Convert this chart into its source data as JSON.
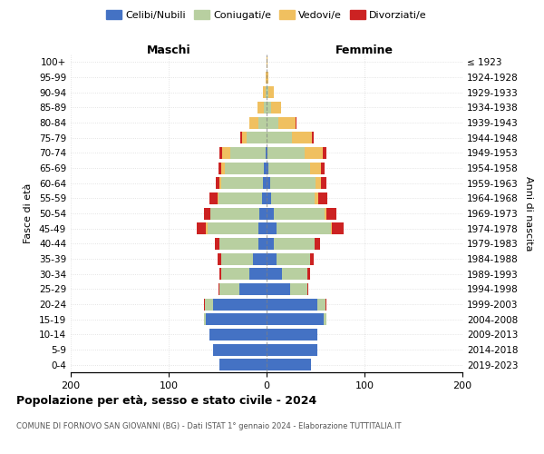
{
  "age_groups": [
    "0-4",
    "5-9",
    "10-14",
    "15-19",
    "20-24",
    "25-29",
    "30-34",
    "35-39",
    "40-44",
    "45-49",
    "50-54",
    "55-59",
    "60-64",
    "65-69",
    "70-74",
    "75-79",
    "80-84",
    "85-89",
    "90-94",
    "95-99",
    "100+"
  ],
  "birth_years": [
    "2019-2023",
    "2014-2018",
    "2009-2013",
    "2004-2008",
    "1999-2003",
    "1994-1998",
    "1989-1993",
    "1984-1988",
    "1979-1983",
    "1974-1978",
    "1969-1973",
    "1964-1968",
    "1959-1963",
    "1954-1958",
    "1949-1953",
    "1944-1948",
    "1939-1943",
    "1934-1938",
    "1929-1933",
    "1924-1928",
    "≤ 1923"
  ],
  "colors": {
    "celibe": "#4472c4",
    "coniugato": "#b8cfa0",
    "vedovo": "#f0c060",
    "divorziato": "#cc2222"
  },
  "maschi": {
    "celibe": [
      48,
      55,
      58,
      62,
      55,
      28,
      18,
      14,
      8,
      8,
      7,
      5,
      4,
      3,
      1,
      0,
      0,
      0,
      0,
      0,
      0
    ],
    "coniugato": [
      0,
      0,
      0,
      2,
      8,
      20,
      28,
      32,
      40,
      52,
      50,
      44,
      42,
      40,
      36,
      20,
      8,
      3,
      1,
      0,
      0
    ],
    "vedovo": [
      0,
      0,
      0,
      0,
      0,
      0,
      0,
      0,
      0,
      2,
      0,
      1,
      2,
      3,
      8,
      5,
      10,
      6,
      3,
      1,
      0
    ],
    "divorziato": [
      0,
      0,
      0,
      0,
      1,
      1,
      2,
      4,
      5,
      9,
      7,
      8,
      4,
      3,
      3,
      2,
      0,
      0,
      0,
      0,
      0
    ]
  },
  "femmine": {
    "nubile": [
      45,
      52,
      52,
      58,
      52,
      24,
      16,
      10,
      7,
      10,
      7,
      5,
      4,
      2,
      1,
      0,
      0,
      0,
      0,
      0,
      0
    ],
    "coniugata": [
      0,
      0,
      0,
      3,
      8,
      18,
      26,
      34,
      42,
      56,
      52,
      44,
      46,
      42,
      38,
      26,
      12,
      5,
      2,
      0,
      0
    ],
    "vedova": [
      0,
      0,
      0,
      0,
      0,
      0,
      0,
      0,
      0,
      1,
      2,
      4,
      6,
      12,
      18,
      20,
      18,
      10,
      5,
      2,
      1
    ],
    "divorziata": [
      0,
      0,
      0,
      0,
      1,
      1,
      2,
      4,
      6,
      12,
      10,
      9,
      5,
      3,
      4,
      2,
      1,
      0,
      0,
      0,
      0
    ]
  },
  "xlim": [
    -200,
    200
  ],
  "xticks": [
    -200,
    -100,
    0,
    100,
    200
  ],
  "xticklabels": [
    "200",
    "100",
    "0",
    "100",
    "200"
  ],
  "title": "Popolazione per età, sesso e stato civile - 2024",
  "subtitle": "COMUNE DI FORNOVO SAN GIOVANNI (BG) - Dati ISTAT 1° gennaio 2024 - Elaborazione TUTTITALIA.IT",
  "ylabel": "Fasce di età",
  "ylabel_right": "Anni di nascita",
  "label_maschi": "Maschi",
  "label_femmine": "Femmine",
  "legend_labels": [
    "Celibi/Nubili",
    "Coniugati/e",
    "Vedovi/e",
    "Divorziati/e"
  ]
}
